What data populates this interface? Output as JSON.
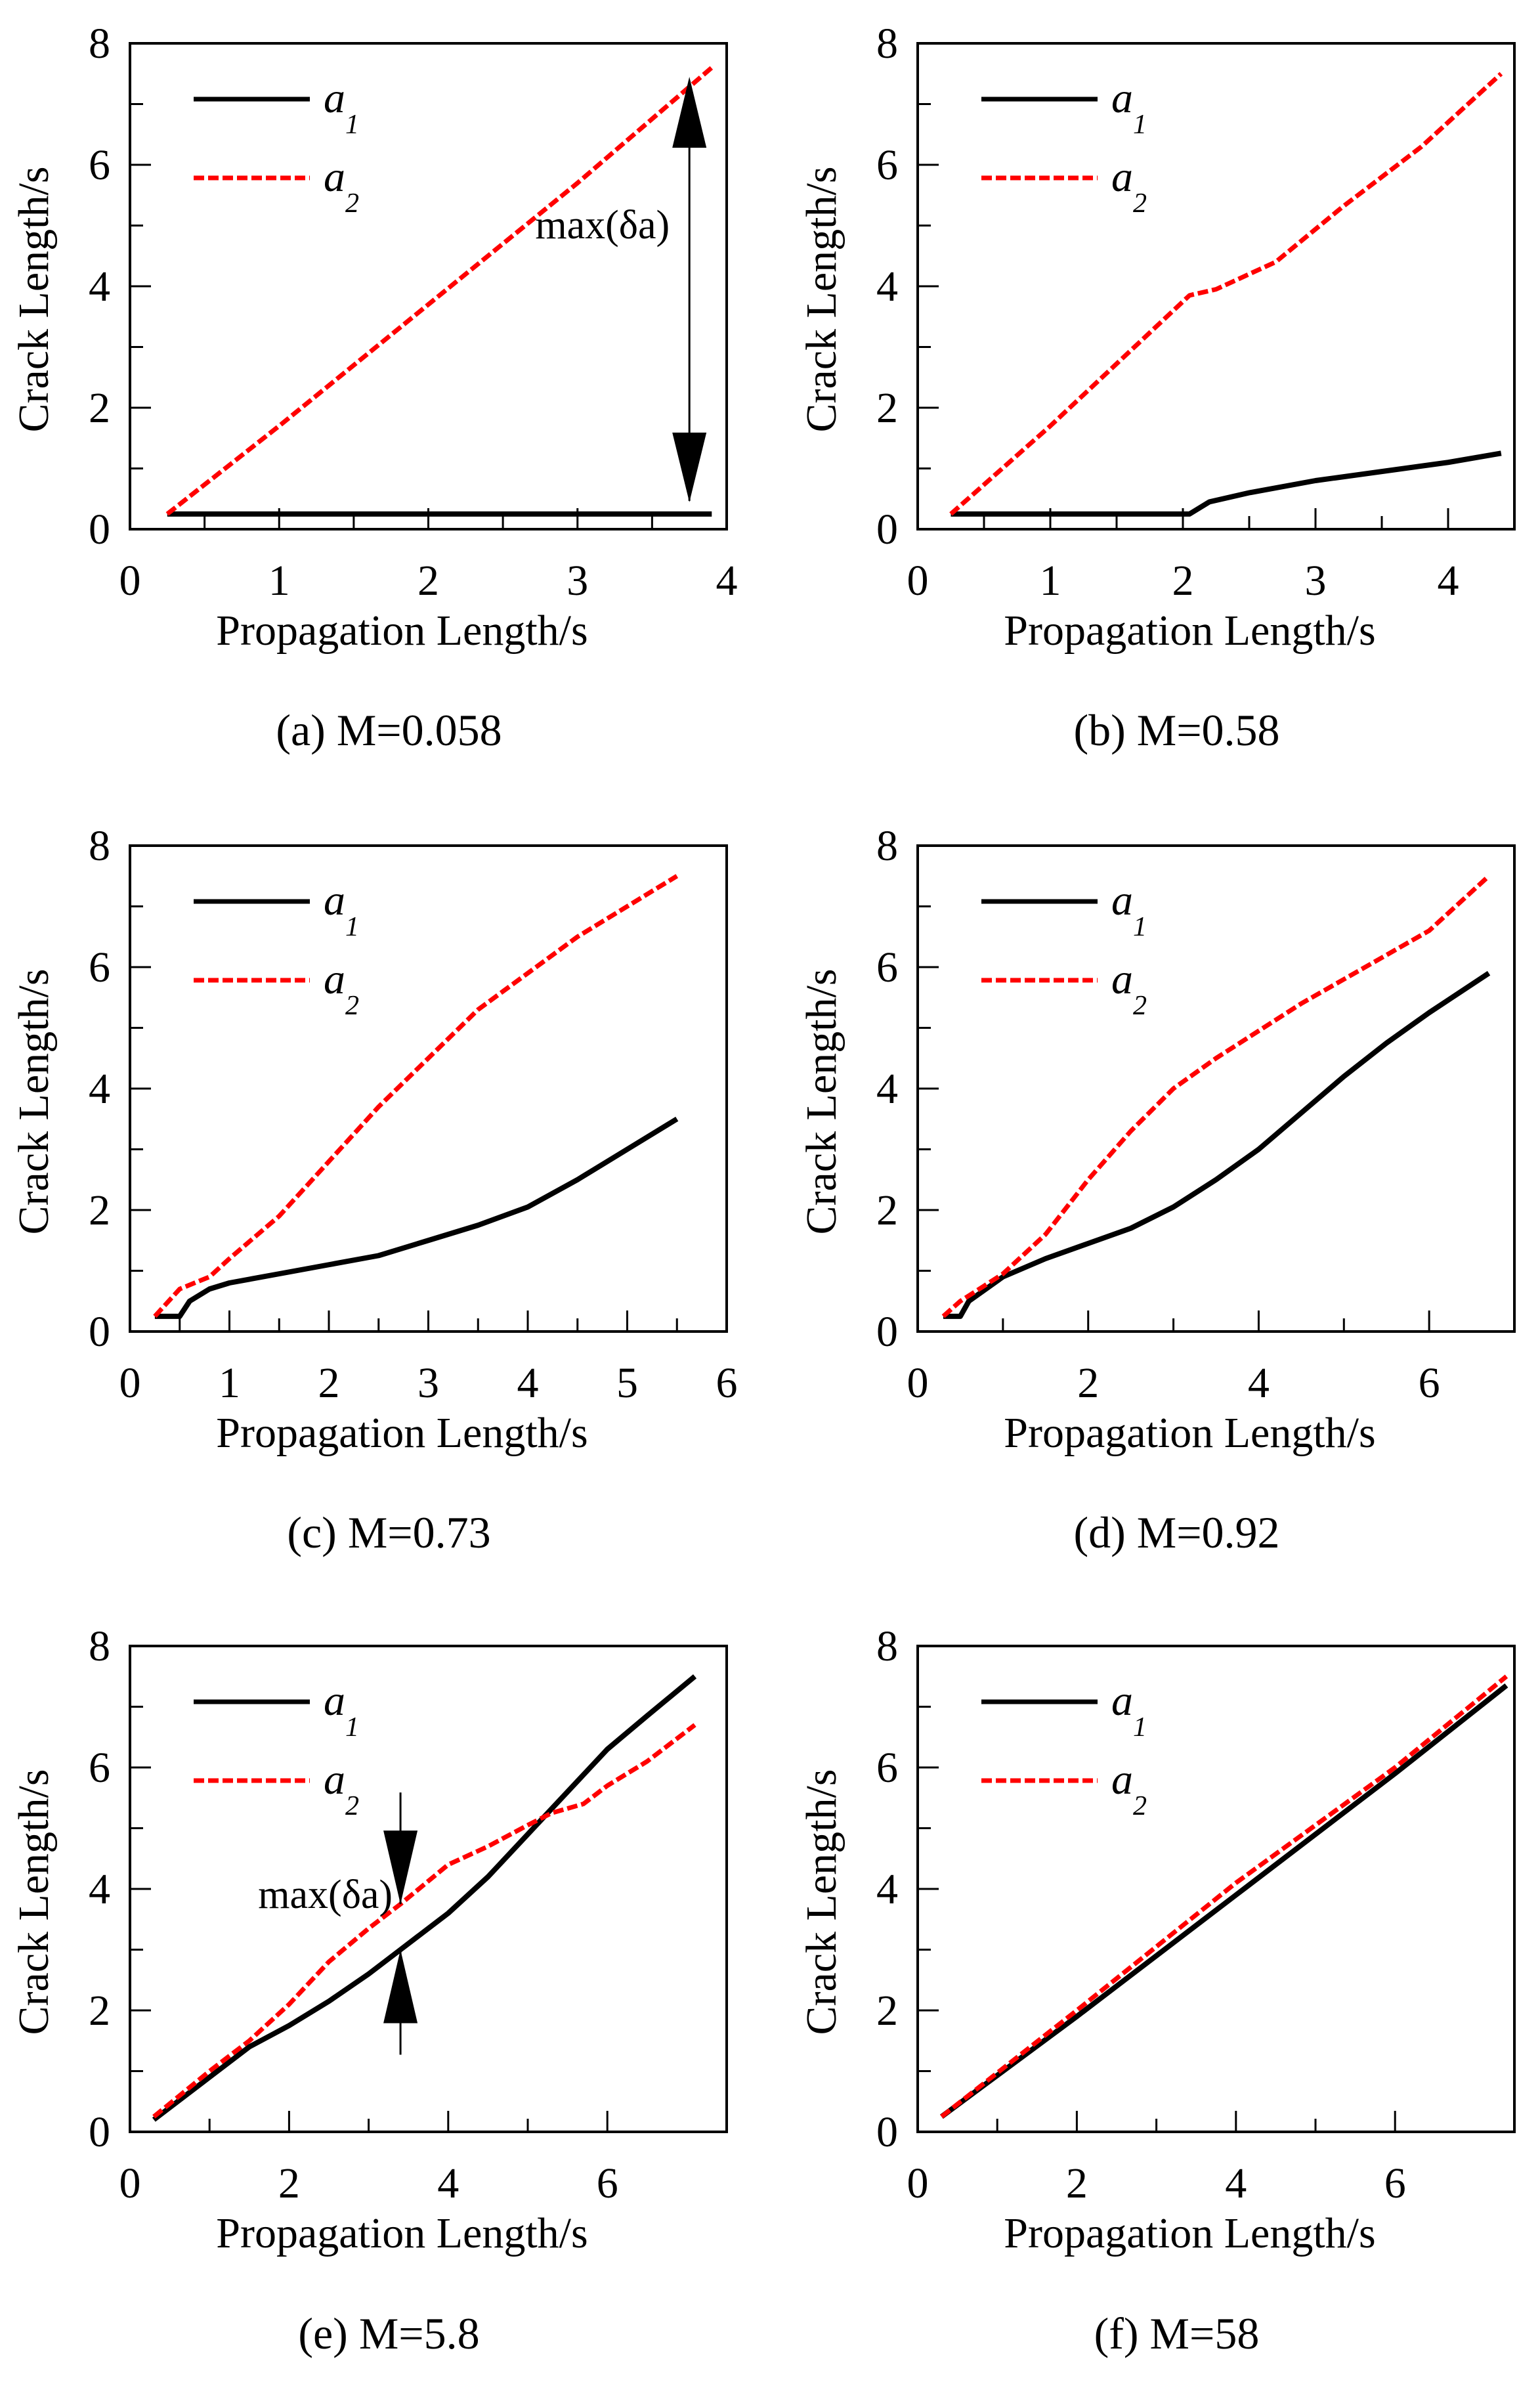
{
  "colors": {
    "a1": "#000000",
    "a2": "#ff0000"
  },
  "chart_data": [
    {
      "type": "line",
      "caption": "(a) M=0.058",
      "xlabel": "Propagation Length/s",
      "ylabel": "Crack Length/s",
      "xlim": [
        0,
        4
      ],
      "ylim": [
        0,
        8
      ],
      "xticks": [
        0,
        1,
        2,
        3,
        4
      ],
      "yticks": [
        0,
        2,
        4,
        6,
        8
      ],
      "legend": "top-left",
      "annotation": {
        "text": "max(δa)",
        "x": 3.75,
        "from": 7.6,
        "to": 0.25
      },
      "series": [
        {
          "name": "a",
          "sub": "1",
          "style": "solid",
          "points": [
            [
              0.25,
              0.25
            ],
            [
              3.9,
              0.25
            ]
          ]
        },
        {
          "name": "a",
          "sub": "2",
          "style": "dashed",
          "points": [
            [
              0.25,
              0.25
            ],
            [
              1,
              1.7
            ],
            [
              2,
              3.7
            ],
            [
              3,
              5.7
            ],
            [
              3.9,
              7.6
            ]
          ]
        }
      ]
    },
    {
      "type": "line",
      "caption": "(b) M=0.58",
      "xlabel": "Propagation Length/s",
      "ylabel": "Crack Length/s",
      "xlim": [
        0,
        4.5
      ],
      "ylim": [
        0,
        8
      ],
      "xticks": [
        0,
        1,
        2,
        3,
        4
      ],
      "yticks": [
        0,
        2,
        4,
        6,
        8
      ],
      "legend": "top-left",
      "series": [
        {
          "name": "a",
          "sub": "1",
          "style": "solid",
          "points": [
            [
              0.25,
              0.25
            ],
            [
              2.05,
              0.25
            ],
            [
              2.2,
              0.45
            ],
            [
              2.5,
              0.6
            ],
            [
              3,
              0.8
            ],
            [
              3.5,
              0.95
            ],
            [
              4,
              1.1
            ],
            [
              4.4,
              1.25
            ]
          ]
        },
        {
          "name": "a",
          "sub": "2",
          "style": "dashed",
          "points": [
            [
              0.25,
              0.25
            ],
            [
              1,
              1.7
            ],
            [
              2.05,
              3.85
            ],
            [
              2.25,
              3.95
            ],
            [
              2.7,
              4.4
            ],
            [
              3.2,
              5.3
            ],
            [
              3.8,
              6.3
            ],
            [
              4.4,
              7.5
            ]
          ]
        }
      ]
    },
    {
      "type": "line",
      "caption": "(c) M=0.73",
      "xlabel": "Propagation Length/s",
      "ylabel": "Crack Length/s",
      "xlim": [
        0,
        6
      ],
      "ylim": [
        0,
        8
      ],
      "xticks": [
        0,
        1,
        2,
        3,
        4,
        5,
        6
      ],
      "yticks": [
        0,
        2,
        4,
        6,
        8
      ],
      "legend": "top-left",
      "series": [
        {
          "name": "a",
          "sub": "1",
          "style": "solid",
          "points": [
            [
              0.25,
              0.25
            ],
            [
              0.5,
              0.25
            ],
            [
              0.6,
              0.5
            ],
            [
              0.8,
              0.7
            ],
            [
              1,
              0.8
            ],
            [
              1.5,
              0.95
            ],
            [
              2,
              1.1
            ],
            [
              2.5,
              1.25
            ],
            [
              3,
              1.5
            ],
            [
              3.5,
              1.75
            ],
            [
              4,
              2.05
            ],
            [
              4.5,
              2.5
            ],
            [
              5,
              3.0
            ],
            [
              5.5,
              3.5
            ]
          ]
        },
        {
          "name": "a",
          "sub": "2",
          "style": "dashed",
          "points": [
            [
              0.25,
              0.25
            ],
            [
              0.5,
              0.7
            ],
            [
              0.8,
              0.9
            ],
            [
              1,
              1.2
            ],
            [
              1.5,
              1.9
            ],
            [
              2,
              2.8
            ],
            [
              2.5,
              3.7
            ],
            [
              3,
              4.5
            ],
            [
              3.5,
              5.3
            ],
            [
              4,
              5.9
            ],
            [
              4.5,
              6.5
            ],
            [
              5,
              7.0
            ],
            [
              5.5,
              7.5
            ]
          ]
        }
      ]
    },
    {
      "type": "line",
      "caption": "(d) M=0.92",
      "xlabel": "Propagation Length/s",
      "ylabel": "Crack Length/s",
      "xlim": [
        0,
        7
      ],
      "ylim": [
        0,
        8
      ],
      "xticks": [
        0,
        2,
        4,
        6
      ],
      "yticks": [
        0,
        2,
        4,
        6,
        8
      ],
      "legend": "top-left",
      "series": [
        {
          "name": "a",
          "sub": "1",
          "style": "solid",
          "points": [
            [
              0.3,
              0.25
            ],
            [
              0.5,
              0.25
            ],
            [
              0.6,
              0.5
            ],
            [
              1,
              0.9
            ],
            [
              1.5,
              1.2
            ],
            [
              2,
              1.45
            ],
            [
              2.5,
              1.7
            ],
            [
              3,
              2.05
            ],
            [
              3.5,
              2.5
            ],
            [
              4,
              3.0
            ],
            [
              4.5,
              3.6
            ],
            [
              5,
              4.2
            ],
            [
              5.5,
              4.75
            ],
            [
              6,
              5.25
            ],
            [
              6.7,
              5.9
            ]
          ]
        },
        {
          "name": "a",
          "sub": "2",
          "style": "dashed",
          "points": [
            [
              0.3,
              0.25
            ],
            [
              0.5,
              0.5
            ],
            [
              1,
              0.95
            ],
            [
              1.5,
              1.6
            ],
            [
              2,
              2.5
            ],
            [
              2.5,
              3.3
            ],
            [
              3,
              4.0
            ],
            [
              3.5,
              4.5
            ],
            [
              4,
              4.95
            ],
            [
              4.5,
              5.4
            ],
            [
              5,
              5.8
            ],
            [
              5.5,
              6.2
            ],
            [
              6,
              6.6
            ],
            [
              6.7,
              7.5
            ]
          ]
        }
      ]
    },
    {
      "type": "line",
      "caption": "(e) M=5.8",
      "xlabel": "Propagation Length/s",
      "ylabel": "Crack Length/s",
      "xlim": [
        0,
        7.5
      ],
      "ylim": [
        0,
        8
      ],
      "xticks": [
        0,
        2,
        4,
        6
      ],
      "yticks": [
        0,
        2,
        4,
        6,
        8
      ],
      "legend": "top-left",
      "annotation": {
        "text": "max(δa)",
        "x": 3.4,
        "from": 3.75,
        "to": 3.0,
        "inward": true
      },
      "series": [
        {
          "name": "a",
          "sub": "1",
          "style": "solid",
          "points": [
            [
              0.3,
              0.2
            ],
            [
              1,
              0.9
            ],
            [
              1.5,
              1.4
            ],
            [
              2,
              1.75
            ],
            [
              2.5,
              2.15
            ],
            [
              3,
              2.6
            ],
            [
              3.4,
              3.0
            ],
            [
              4,
              3.6
            ],
            [
              4.5,
              4.2
            ],
            [
              5,
              4.9
            ],
            [
              5.5,
              5.6
            ],
            [
              6,
              6.3
            ],
            [
              6.5,
              6.85
            ],
            [
              7.1,
              7.5
            ]
          ]
        },
        {
          "name": "a",
          "sub": "2",
          "style": "dashed",
          "points": [
            [
              0.3,
              0.25
            ],
            [
              1,
              1.0
            ],
            [
              1.5,
              1.5
            ],
            [
              2,
              2.1
            ],
            [
              2.5,
              2.8
            ],
            [
              3,
              3.35
            ],
            [
              3.4,
              3.75
            ],
            [
              4,
              4.4
            ],
            [
              4.5,
              4.7
            ],
            [
              5,
              5.05
            ],
            [
              5.3,
              5.25
            ],
            [
              5.7,
              5.4
            ],
            [
              6,
              5.7
            ],
            [
              6.5,
              6.1
            ],
            [
              7.1,
              6.7
            ]
          ]
        }
      ]
    },
    {
      "type": "line",
      "caption": "(f) M=58",
      "xlabel": "Propagation Length/s",
      "ylabel": "Crack Length/s",
      "xlim": [
        0,
        7.5
      ],
      "ylim": [
        0,
        8
      ],
      "xticks": [
        0,
        2,
        4,
        6
      ],
      "yticks": [
        0,
        2,
        4,
        6,
        8
      ],
      "legend": "top-left",
      "series": [
        {
          "name": "a",
          "sub": "1",
          "style": "solid",
          "points": [
            [
              0.3,
              0.25
            ],
            [
              2,
              1.9
            ],
            [
              4,
              3.9
            ],
            [
              6,
              5.9
            ],
            [
              7.4,
              7.35
            ]
          ]
        },
        {
          "name": "a",
          "sub": "2",
          "style": "dashed",
          "points": [
            [
              0.3,
              0.25
            ],
            [
              2,
              2.0
            ],
            [
              4,
              4.1
            ],
            [
              6,
              6.0
            ],
            [
              7.4,
              7.5
            ]
          ]
        }
      ]
    }
  ]
}
